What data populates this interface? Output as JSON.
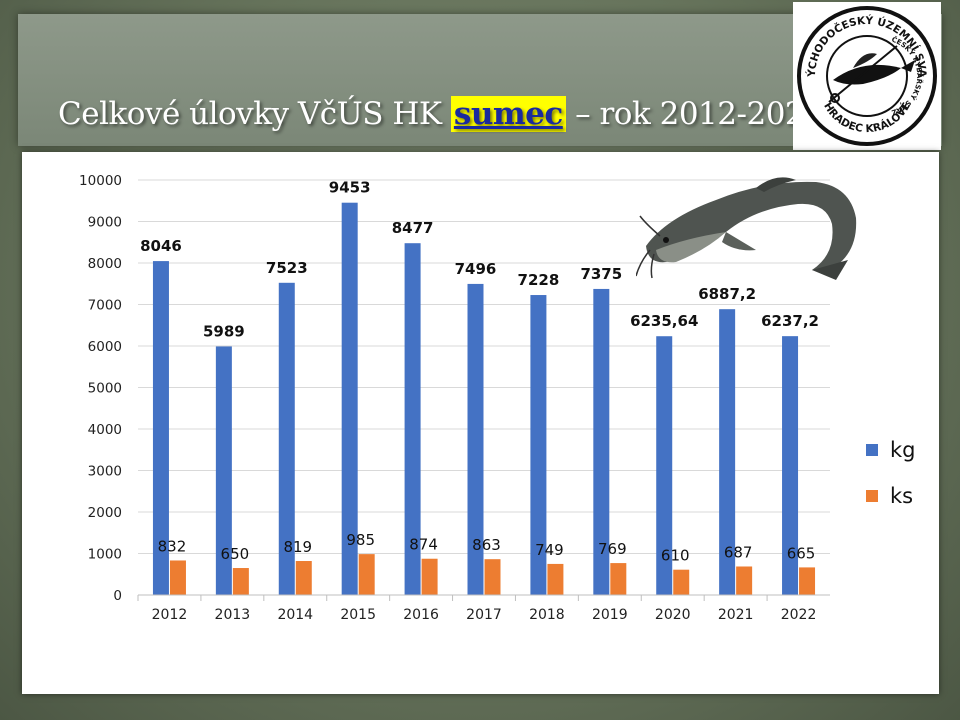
{
  "title": {
    "before": "Celkové úlovky VčÚS HK ",
    "highlight": "sumec",
    "after": " – rok 2012-2022"
  },
  "logo": {
    "ring_top": "VÝCHODOČESKÝ ÚZEMNÍ SVAZ",
    "ring_bottom": "HRADEC KRÁLOVÉ",
    "inner": "ČESKÝ RYBÁŘSKÝ SVAZ"
  },
  "colors": {
    "kg": "#4472c4",
    "ks": "#ed7d31"
  },
  "chart_data": {
    "type": "bar",
    "categories": [
      "2012",
      "2013",
      "2014",
      "2015",
      "2016",
      "2017",
      "2018",
      "2019",
      "2020",
      "2021",
      "2022"
    ],
    "series": [
      {
        "name": "kg",
        "values": [
          8046,
          5989,
          7523,
          9453,
          8477,
          7496,
          7228,
          7375,
          6235.64,
          6887.2,
          6237.2
        ],
        "labels": [
          "8046",
          "5989",
          "7523",
          "9453",
          "8477",
          "7496",
          "7228",
          "7375",
          "6235,64",
          "6887,2",
          "6237,2"
        ]
      },
      {
        "name": "ks",
        "values": [
          832,
          650,
          819,
          985,
          874,
          863,
          749,
          769,
          610,
          687,
          665
        ],
        "labels": [
          "832",
          "650",
          "819",
          "985",
          "874",
          "863",
          "749",
          "769",
          "610",
          "687",
          "665"
        ]
      }
    ],
    "yticks": [
      "0",
      "1000",
      "2000",
      "3000",
      "4000",
      "5000",
      "6000",
      "7000",
      "8000",
      "9000",
      "10000"
    ],
    "ylim": [
      0,
      10000
    ],
    "grid": true,
    "legend": "right"
  }
}
